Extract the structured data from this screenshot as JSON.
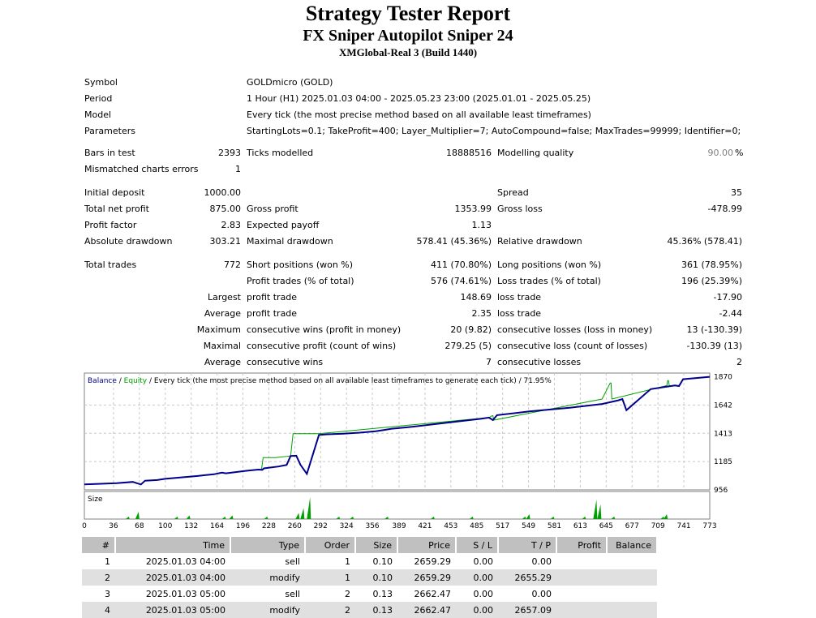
{
  "header": {
    "title": "Strategy Tester Report",
    "expert": "FX Sniper Autopilot Sniper 24",
    "server": "XMGlobal-Real 3 (Build 1440)"
  },
  "info": {
    "symbol_label": "Symbol",
    "symbol": "GOLDmicro (GOLD)",
    "period_label": "Period",
    "period": "1 Hour (H1) 2025.01.03 04:00 - 2025.05.23 23:00 (2025.01.01 - 2025.05.25)",
    "model_label": "Model",
    "model": "Every tick (the most precise method based on all available least timeframes)",
    "params_label": "Parameters",
    "params": "StartingLots=0.1; TakeProfit=400; Layer_Multiplier=7; AutoCompound=false; MaxTrades=99999; Identifier=0;"
  },
  "stats": {
    "bars_label": "Bars in test",
    "bars": "2393",
    "ticks_label": "Ticks modelled",
    "ticks": "18888516",
    "quality_label": "Modelling quality",
    "quality": "90.00",
    "pct_sign": "%",
    "mismatch_label": "Mismatched charts errors",
    "mismatch": "1",
    "deposit_label": "Initial deposit",
    "deposit": "1000.00",
    "spread_label": "Spread",
    "spread": "35",
    "net_label": "Total net profit",
    "net": "875.00",
    "gprofit_label": "Gross profit",
    "gprofit": "1353.99",
    "gloss_label": "Gross loss",
    "gloss": "-478.99",
    "pf_label": "Profit factor",
    "pf": "2.83",
    "payoff_label": "Expected payoff",
    "payoff": "1.13",
    "absdd_label": "Absolute drawdown",
    "absdd": "303.21",
    "maxdd_label": "Maximal drawdown",
    "maxdd": "578.41 (45.36%)",
    "reldd_label": "Relative drawdown",
    "reldd": "45.36% (578.41)",
    "trades_label": "Total trades",
    "trades": "772",
    "short_label": "Short positions (won %)",
    "short": "411 (70.80%)",
    "long_label": "Long positions (won %)",
    "long": "361 (78.95%)",
    "ptrades_label": "Profit trades (% of total)",
    "ptrades": "576 (74.61%)",
    "ltrades_label": "Loss trades (% of total)",
    "ltrades": "196 (25.39%)",
    "largest_label": "Largest",
    "lpt_label": "profit trade",
    "lpt": "148.69",
    "llt_label": "loss trade",
    "llt": "-17.90",
    "average_label": "Average",
    "apt_label": "profit trade",
    "apt": "2.35",
    "alt_label": "loss trade",
    "alt": "-2.44",
    "maximum_label": "Maximum",
    "mcw_label": "consecutive wins (profit in money)",
    "mcw": "20 (9.82)",
    "mcl_label": "consecutive losses (loss in money)",
    "mcl": "13 (-130.39)",
    "maximal_label": "Maximal",
    "mcp_label": "consecutive profit (count of wins)",
    "mcp": "279.25 (5)",
    "mclc_label": "consecutive loss (count of losses)",
    "mclc": "-130.39 (13)",
    "average2_label": "Average",
    "acw_label": "consecutive wins",
    "acw": "7",
    "acl_label": "consecutive losses",
    "acl": "2"
  },
  "chart_data": {
    "type": "line",
    "legend_balance": "Balance",
    "legend_sep": " / ",
    "legend_equity": "Equity",
    "legend_rest": " / Every tick (the most precise method based on all available least timeframes to generate each tick) / 71.95%",
    "size_label": "Size",
    "ylim": [
      956,
      1900
    ],
    "y_ticks": [
      "1870",
      "1642",
      "1413",
      "1185",
      "956"
    ],
    "x_ticks": [
      "0",
      "36",
      "68",
      "100",
      "132",
      "164",
      "196",
      "228",
      "260",
      "292",
      "324",
      "356",
      "389",
      "421",
      "453",
      "485",
      "517",
      "549",
      "581",
      "613",
      "645",
      "677",
      "709",
      "741",
      "773"
    ],
    "x_max": 773,
    "balance_color": "#00008b",
    "equity_color": "#00a000",
    "series": [
      {
        "name": "Balance",
        "x": [
          0,
          40,
          60,
          65,
          70,
          75,
          90,
          100,
          140,
          150,
          160,
          170,
          175,
          200,
          215,
          220,
          222,
          240,
          250,
          255,
          262,
          267,
          275,
          290,
          300,
          320,
          340,
          360,
          370,
          380,
          400,
          450,
          490,
          500,
          505,
          510,
          550,
          600,
          640,
          660,
          665,
          670,
          700,
          720,
          730,
          735,
          740,
          773
        ],
        "y": [
          1000,
          1010,
          1020,
          1010,
          1000,
          1030,
          1035,
          1045,
          1068,
          1075,
          1082,
          1095,
          1090,
          1110,
          1120,
          1118,
          1130,
          1145,
          1158,
          1230,
          1232,
          1160,
          1085,
          1400,
          1405,
          1410,
          1418,
          1430,
          1440,
          1450,
          1462,
          1500,
          1530,
          1540,
          1520,
          1560,
          1590,
          1620,
          1650,
          1680,
          1690,
          1600,
          1770,
          1790,
          1800,
          1795,
          1850,
          1870
        ]
      },
      {
        "name": "Equity",
        "x": [
          219,
          221,
          225,
          236,
          255,
          258,
          260,
          290,
          500,
          504,
          505,
          506,
          640,
          650,
          651,
          652,
          720,
          721,
          722,
          723
        ],
        "y": [
          1120,
          1217,
          1217,
          1217,
          1230,
          1410,
          1410,
          1410,
          1540,
          1555,
          1555,
          1520,
          1690,
          1820,
          1820,
          1690,
          1800,
          1840,
          1840,
          1800
        ]
      }
    ],
    "size_spikes": [
      [
        55,
        2
      ],
      [
        67,
        6
      ],
      [
        115,
        2
      ],
      [
        130,
        3
      ],
      [
        174,
        2
      ],
      [
        183,
        3
      ],
      [
        226,
        2
      ],
      [
        265,
        5
      ],
      [
        271,
        9
      ],
      [
        279,
        18
      ],
      [
        315,
        2
      ],
      [
        332,
        2
      ],
      [
        375,
        2
      ],
      [
        432,
        2
      ],
      [
        480,
        2
      ],
      [
        545,
        2
      ],
      [
        550,
        4
      ],
      [
        580,
        2
      ],
      [
        619,
        2
      ],
      [
        633,
        16
      ],
      [
        638,
        12
      ],
      [
        655,
        2
      ],
      [
        716,
        2
      ],
      [
        720,
        4
      ]
    ]
  },
  "trades_table": {
    "columns": [
      "#",
      "Time",
      "Type",
      "Order",
      "Size",
      "Price",
      "S / L",
      "T / P",
      "Profit",
      "Balance"
    ],
    "rows": [
      [
        "1",
        "2025.01.03 04:00",
        "sell",
        "1",
        "0.10",
        "2659.29",
        "0.00",
        "0.00",
        "",
        ""
      ],
      [
        "2",
        "2025.01.03 04:00",
        "modify",
        "1",
        "0.10",
        "2659.29",
        "0.00",
        "2655.29",
        "",
        ""
      ],
      [
        "3",
        "2025.01.03 05:00",
        "sell",
        "2",
        "0.13",
        "2662.47",
        "0.00",
        "0.00",
        "",
        ""
      ],
      [
        "4",
        "2025.01.03 05:00",
        "modify",
        "2",
        "0.13",
        "2662.47",
        "0.00",
        "2657.09",
        "",
        ""
      ]
    ]
  }
}
